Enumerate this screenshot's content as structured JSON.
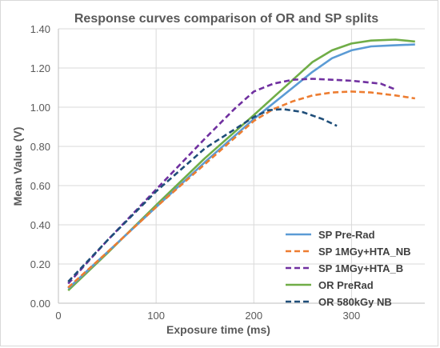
{
  "chart_data": {
    "type": "line",
    "title": "Response curves comparison of OR and SP splits",
    "xlabel": "Exposure time (ms)",
    "ylabel": "Mean Value (V)",
    "xlim": [
      0,
      375
    ],
    "ylim": [
      0,
      1.4
    ],
    "x_ticks": [
      "0",
      "100",
      "200",
      "300"
    ],
    "y_ticks": [
      "0.00",
      "0.20",
      "0.40",
      "0.60",
      "0.80",
      "1.00",
      "1.20",
      "1.40"
    ],
    "grid": true,
    "legend_position": "bottom-right",
    "series": [
      {
        "name": "SP Pre-Rad",
        "color": "#5b9bd5",
        "dash": "solid",
        "points": [
          [
            10,
            0.075
          ],
          [
            50,
            0.26
          ],
          [
            100,
            0.49
          ],
          [
            150,
            0.72
          ],
          [
            200,
            0.94
          ],
          [
            220,
            1.02
          ],
          [
            240,
            1.1
          ],
          [
            260,
            1.18
          ],
          [
            280,
            1.25
          ],
          [
            300,
            1.29
          ],
          [
            320,
            1.31
          ],
          [
            340,
            1.315
          ],
          [
            365,
            1.32
          ]
        ]
      },
      {
        "name": "SP 1MGy+HTA_NB",
        "color": "#ed7d31",
        "dash": "dashed",
        "points": [
          [
            10,
            0.08
          ],
          [
            50,
            0.26
          ],
          [
            100,
            0.49
          ],
          [
            150,
            0.71
          ],
          [
            200,
            0.93
          ],
          [
            220,
            0.99
          ],
          [
            240,
            1.03
          ],
          [
            260,
            1.06
          ],
          [
            280,
            1.075
          ],
          [
            300,
            1.08
          ],
          [
            320,
            1.075
          ],
          [
            345,
            1.06
          ],
          [
            365,
            1.045
          ]
        ]
      },
      {
        "name": "SP 1MGy+HTA_B",
        "color": "#7030a0",
        "dash": "dashed",
        "points": [
          [
            10,
            0.1
          ],
          [
            50,
            0.32
          ],
          [
            100,
            0.58
          ],
          [
            150,
            0.84
          ],
          [
            180,
            0.99
          ],
          [
            200,
            1.08
          ],
          [
            220,
            1.12
          ],
          [
            240,
            1.14
          ],
          [
            260,
            1.145
          ],
          [
            280,
            1.14
          ],
          [
            300,
            1.135
          ],
          [
            330,
            1.12
          ],
          [
            345,
            1.09
          ]
        ]
      },
      {
        "name": "OR PreRad",
        "color": "#70ad47",
        "dash": "solid",
        "points": [
          [
            10,
            0.065
          ],
          [
            50,
            0.255
          ],
          [
            100,
            0.5
          ],
          [
            150,
            0.74
          ],
          [
            200,
            0.96
          ],
          [
            220,
            1.05
          ],
          [
            240,
            1.14
          ],
          [
            260,
            1.23
          ],
          [
            280,
            1.29
          ],
          [
            300,
            1.325
          ],
          [
            320,
            1.34
          ],
          [
            345,
            1.345
          ],
          [
            365,
            1.335
          ]
        ]
      },
      {
        "name": "OR 580kGy NB",
        "color": "#1f4e79",
        "dash": "dashed",
        "points": [
          [
            10,
            0.11
          ],
          [
            50,
            0.32
          ],
          [
            100,
            0.57
          ],
          [
            150,
            0.79
          ],
          [
            200,
            0.95
          ],
          [
            215,
            0.985
          ],
          [
            230,
            0.99
          ],
          [
            250,
            0.975
          ],
          [
            270,
            0.94
          ],
          [
            285,
            0.905
          ]
        ]
      }
    ]
  }
}
